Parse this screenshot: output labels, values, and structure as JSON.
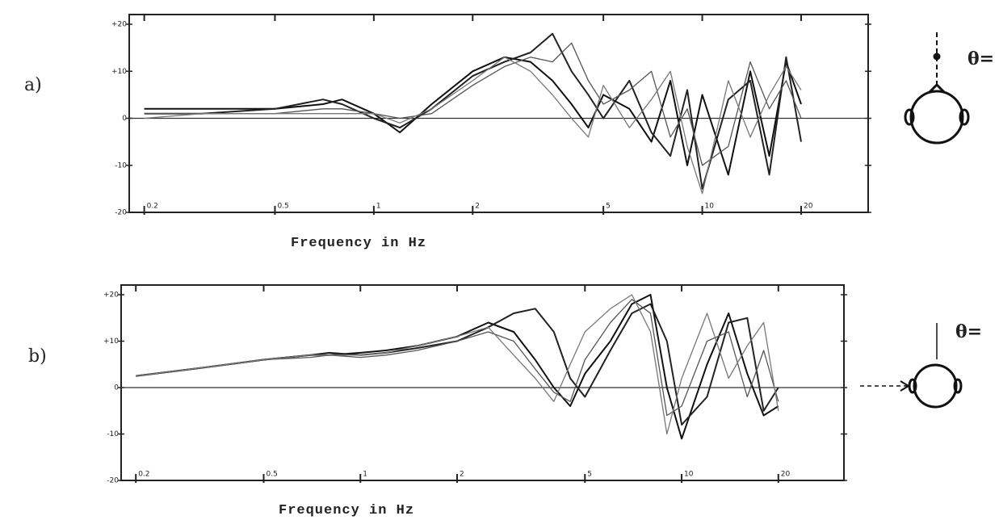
{
  "chart_data": [
    {
      "type": "line",
      "panel_label": "a)",
      "angle_label": "θ=",
      "xlabel": "Frequency in Hz",
      "log_x": true,
      "zero_line": true,
      "x": [
        0.2,
        0.3,
        0.5,
        0.7,
        0.8,
        1,
        1.2,
        1.5,
        2,
        2.5,
        3,
        3.5,
        4,
        4.5,
        5,
        6,
        7,
        8,
        9,
        10,
        12,
        14,
        16,
        18,
        20
      ],
      "xlim": [
        0.18,
        32
      ],
      "ylim": [
        -20,
        20
      ],
      "xticks": [
        0.2,
        0.5,
        1,
        2,
        5,
        10,
        20
      ],
      "yticks": [
        {
          "value": 20,
          "label": "+20"
        },
        {
          "value": 10,
          "label": "+10"
        },
        0,
        -10,
        -20
      ],
      "series": [
        {
          "color": "#111111",
          "values": [
            2,
            2,
            2,
            3,
            4,
            1,
            -3,
            3,
            10,
            13,
            12,
            8,
            3,
            -2,
            5,
            2,
            -5,
            8,
            -10,
            5,
            -12,
            10,
            -8,
            12,
            3
          ]
        },
        {
          "color": "#222222",
          "values": [
            1,
            1,
            2,
            4,
            3,
            0,
            -2,
            2,
            9,
            12,
            14,
            18,
            10,
            5,
            0,
            8,
            -3,
            -8,
            6,
            -15,
            4,
            8,
            -12,
            13,
            -5
          ]
        },
        {
          "color": "#555555",
          "values": [
            1,
            1,
            1,
            2,
            2,
            1,
            0,
            1,
            7,
            11,
            13,
            12,
            16,
            8,
            3,
            6,
            10,
            -4,
            2,
            -10,
            -6,
            12,
            2,
            8,
            0
          ]
        },
        {
          "color": "#777777",
          "values": [
            0,
            1,
            1,
            1,
            1,
            1,
            -1,
            2,
            8,
            13,
            10,
            5,
            0,
            -4,
            7,
            -2,
            4,
            10,
            -6,
            -16,
            8,
            -4,
            5,
            11,
            6
          ]
        }
      ]
    },
    {
      "type": "line",
      "panel_label": "b)",
      "angle_label": "θ=",
      "xlabel": "Frequency in Hz",
      "log_x": true,
      "zero_line": true,
      "x": [
        0.2,
        0.3,
        0.5,
        0.7,
        0.8,
        1,
        1.2,
        1.5,
        2,
        2.5,
        3,
        3.5,
        4,
        4.5,
        5,
        6,
        7,
        8,
        9,
        10,
        12,
        14,
        16,
        18,
        20
      ],
      "xlim": [
        0.18,
        32
      ],
      "ylim": [
        -20,
        20
      ],
      "xticks": [
        0.2,
        0.5,
        1,
        2,
        5,
        10,
        20
      ],
      "yticks": [
        {
          "value": 20,
          "label": "+20"
        },
        {
          "value": 10,
          "label": "+10"
        },
        0,
        -10,
        -20
      ],
      "series": [
        {
          "color": "#111111",
          "values": [
            2.5,
            4,
            6,
            7,
            7,
            7.5,
            8,
            9,
            11,
            14,
            12,
            6,
            0,
            -4,
            3,
            10,
            18,
            20,
            0,
            -11,
            5,
            16,
            3,
            -6,
            -4
          ]
        },
        {
          "color": "#222222",
          "values": [
            2.5,
            4,
            6,
            7,
            7.5,
            7,
            7.5,
            8.5,
            10,
            13,
            16,
            17,
            12,
            2,
            -2,
            8,
            16,
            18,
            10,
            -8,
            -2,
            14,
            15,
            -5,
            0
          ]
        },
        {
          "color": "#555555",
          "values": [
            2.5,
            4,
            6,
            6.5,
            7,
            6.5,
            7,
            8,
            10,
            12,
            10,
            4,
            -1,
            -3,
            6,
            14,
            19,
            16,
            -6,
            -4,
            10,
            12,
            -2,
            8,
            -3
          ]
        },
        {
          "color": "#777777",
          "values": [
            2.5,
            4,
            6,
            7,
            7,
            7,
            7.5,
            9,
            11,
            13,
            7,
            2,
            -3,
            5,
            12,
            17,
            20,
            12,
            -10,
            2,
            16,
            2,
            9,
            14,
            -5
          ]
        }
      ]
    }
  ]
}
